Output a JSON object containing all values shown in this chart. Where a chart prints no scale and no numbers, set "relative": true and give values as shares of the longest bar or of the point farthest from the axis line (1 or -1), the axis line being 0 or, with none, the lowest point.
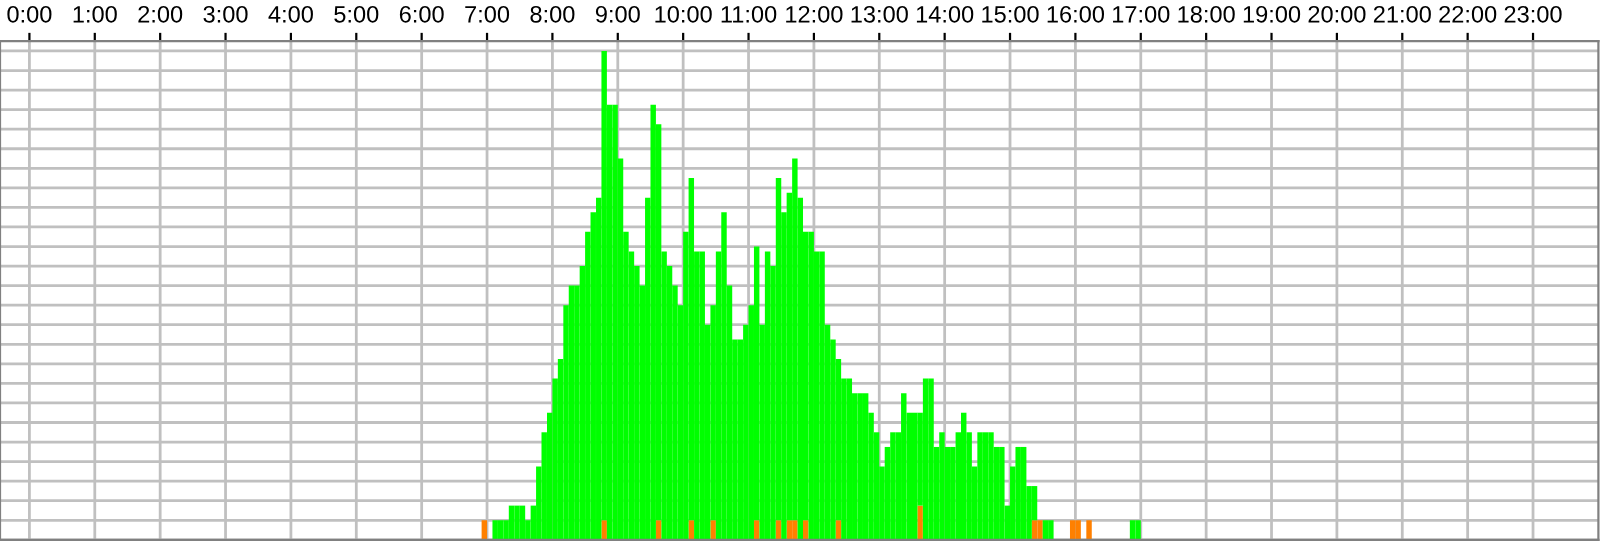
{
  "chart_data": {
    "type": "bar",
    "stacked": true,
    "relative": true,
    "grid": true,
    "x": [
      6.917,
      7.083,
      7.167,
      7.25,
      7.333,
      7.417,
      7.5,
      7.583,
      7.667,
      7.75,
      7.833,
      7.917,
      8.0,
      8.083,
      8.167,
      8.25,
      8.333,
      8.417,
      8.5,
      8.583,
      8.667,
      8.75,
      8.833,
      8.917,
      9.0,
      9.083,
      9.167,
      9.25,
      9.333,
      9.417,
      9.5,
      9.583,
      9.667,
      9.75,
      9.833,
      9.917,
      10.0,
      10.083,
      10.167,
      10.25,
      10.333,
      10.417,
      10.5,
      10.583,
      10.667,
      10.75,
      10.833,
      10.917,
      11.0,
      11.083,
      11.167,
      11.25,
      11.333,
      11.417,
      11.5,
      11.583,
      11.667,
      11.75,
      11.833,
      11.917,
      12.0,
      12.083,
      12.167,
      12.25,
      12.333,
      12.417,
      12.5,
      12.583,
      12.667,
      12.75,
      12.833,
      12.917,
      13.0,
      13.083,
      13.167,
      13.25,
      13.333,
      13.417,
      13.5,
      13.583,
      13.667,
      13.75,
      13.833,
      13.917,
      14.0,
      14.083,
      14.167,
      14.25,
      14.333,
      14.417,
      14.5,
      14.583,
      14.667,
      14.75,
      14.833,
      14.917,
      15.0,
      15.083,
      15.167,
      15.25,
      15.333,
      15.417,
      15.5,
      15.583,
      15.917,
      16.0,
      16.167,
      16.833,
      16.917
    ],
    "series": [
      {
        "color": "#ff8000",
        "values": [
          0.04,
          0,
          0,
          0,
          0,
          0,
          0,
          0,
          0,
          0,
          0,
          0,
          0,
          0,
          0,
          0,
          0,
          0,
          0,
          0,
          0,
          0.04,
          0,
          0,
          0,
          0,
          0,
          0,
          0,
          0,
          0,
          0.04,
          0,
          0,
          0,
          0,
          0,
          0.04,
          0,
          0,
          0,
          0.04,
          0,
          0,
          0,
          0,
          0,
          0,
          0,
          0.04,
          0,
          0,
          0,
          0.04,
          0,
          0.04,
          0.04,
          0,
          0.04,
          0,
          0,
          0,
          0,
          0,
          0.04,
          0,
          0,
          0,
          0,
          0,
          0,
          0,
          0,
          0,
          0,
          0,
          0,
          0,
          0,
          0.07,
          0,
          0,
          0,
          0,
          0,
          0,
          0,
          0,
          0,
          0,
          0,
          0,
          0,
          0,
          0,
          0,
          0,
          0,
          0,
          0,
          0.04,
          0.04,
          0,
          0,
          0.04,
          0.04,
          0.04,
          0,
          0
        ]
      },
      {
        "color": "#00ff00",
        "values": [
          0,
          0.04,
          0.04,
          0.04,
          0.07,
          0.07,
          0.07,
          0.04,
          0.07,
          0.15,
          0.22,
          0.26,
          0.33,
          0.37,
          0.48,
          0.52,
          0.52,
          0.56,
          0.63,
          0.67,
          0.7,
          0.96,
          0.89,
          0.89,
          0.78,
          0.63,
          0.59,
          0.56,
          0.52,
          0.7,
          0.89,
          0.81,
          0.59,
          0.56,
          0.52,
          0.48,
          0.63,
          0.7,
          0.59,
          0.59,
          0.44,
          0.44,
          0.59,
          0.67,
          0.52,
          0.41,
          0.41,
          0.44,
          0.48,
          0.56,
          0.44,
          0.59,
          0.56,
          0.7,
          0.67,
          0.67,
          0.74,
          0.7,
          0.59,
          0.63,
          0.59,
          0.59,
          0.44,
          0.41,
          0.33,
          0.33,
          0.33,
          0.3,
          0.3,
          0.3,
          0.26,
          0.22,
          0.15,
          0.19,
          0.22,
          0.22,
          0.3,
          0.26,
          0.26,
          0.19,
          0.33,
          0.33,
          0.19,
          0.22,
          0.19,
          0.19,
          0.22,
          0.26,
          0.22,
          0.15,
          0.22,
          0.22,
          0.22,
          0.19,
          0.19,
          0.07,
          0.15,
          0.19,
          0.19,
          0.11,
          0.07,
          0,
          0.04,
          0.04,
          0,
          0,
          0,
          0.04,
          0.04
        ]
      }
    ],
    "xlim": [
      -0.45,
      24
    ],
    "xticks": [
      {
        "value": 0,
        "label": "0:00"
      },
      {
        "value": 1,
        "label": "1:00"
      },
      {
        "value": 2,
        "label": "2:00"
      },
      {
        "value": 3,
        "label": "3:00"
      },
      {
        "value": 4,
        "label": "4:00"
      },
      {
        "value": 5,
        "label": "5:00"
      },
      {
        "value": 6,
        "label": "6:00"
      },
      {
        "value": 7,
        "label": "7:00"
      },
      {
        "value": 8,
        "label": "8:00"
      },
      {
        "value": 9,
        "label": "9:00"
      },
      {
        "value": 10,
        "label": "10:00"
      },
      {
        "value": 11,
        "label": "11:00"
      },
      {
        "value": 12,
        "label": "12:00"
      },
      {
        "value": 13,
        "label": "13:00"
      },
      {
        "value": 14,
        "label": "14:00"
      },
      {
        "value": 15,
        "label": "15:00"
      },
      {
        "value": 16,
        "label": "16:00"
      },
      {
        "value": 17,
        "label": "17:00"
      },
      {
        "value": 18,
        "label": "18:00"
      },
      {
        "value": 19,
        "label": "19:00"
      },
      {
        "value": 20,
        "label": "20:00"
      },
      {
        "value": 21,
        "label": "21:00"
      },
      {
        "value": 22,
        "label": "22:00"
      },
      {
        "value": 23,
        "label": "23:00"
      }
    ]
  }
}
